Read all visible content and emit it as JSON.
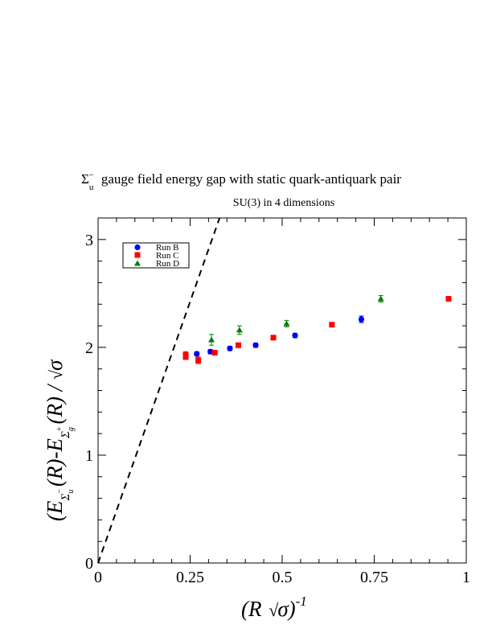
{
  "chart_data": {
    "type": "scatter",
    "title": "gauge field energy gap with static quark-antiquark pair",
    "title_symbol": {
      "base": "Σ",
      "sub": "u",
      "sup": "−"
    },
    "subtitle": "SU(3) in 4 dimensions",
    "xlabel": {
      "open": "(R ",
      "sigma": "σ",
      "close": ")",
      "exp": "-1"
    },
    "ylabel": {
      "open": "(E",
      "sub1_base": "Σ",
      "sub1_sub": "u",
      "sub1_sup": "−",
      "mid": "(R)-E",
      "sub2_base": "Σ",
      "sub2_sub": "g",
      "sub2_sup": "+",
      "tail": "(R) / ",
      "sigma": "σ"
    },
    "xlim": [
      0,
      1
    ],
    "ylim": [
      0,
      3.2
    ],
    "x_ticks": [
      {
        "value": 0,
        "label": "0"
      },
      {
        "value": 0.25,
        "label": "0.25"
      },
      {
        "value": 0.5,
        "label": "0.5"
      },
      {
        "value": 0.75,
        "label": "0.75"
      },
      {
        "value": 1,
        "label": "1"
      }
    ],
    "y_ticks": [
      {
        "value": 0,
        "label": "0"
      },
      {
        "value": 1,
        "label": "1"
      },
      {
        "value": 2,
        "label": "2"
      },
      {
        "value": 3,
        "label": "3"
      }
    ],
    "legend_position": "top-left",
    "series": [
      {
        "name": "Run B",
        "color": "#0000ff",
        "marker": "circle",
        "points": [
          {
            "x": 0.268,
            "y": 1.94,
            "err": 0.02
          },
          {
            "x": 0.305,
            "y": 1.96,
            "err": 0.02
          },
          {
            "x": 0.358,
            "y": 1.99,
            "err": 0.02
          },
          {
            "x": 0.428,
            "y": 2.02,
            "err": 0.02
          },
          {
            "x": 0.535,
            "y": 2.11,
            "err": 0.02
          },
          {
            "x": 0.715,
            "y": 2.26,
            "err": 0.03
          }
        ]
      },
      {
        "name": "Run C",
        "color": "#ff0000",
        "marker": "square",
        "points": [
          {
            "x": 0.238,
            "y": 1.93,
            "err": 0.03
          },
          {
            "x": 0.238,
            "y": 1.91,
            "err": 0.02
          },
          {
            "x": 0.272,
            "y": 1.88,
            "err": 0.03
          },
          {
            "x": 0.317,
            "y": 1.95,
            "err": 0.02
          },
          {
            "x": 0.381,
            "y": 2.02,
            "err": 0.02
          },
          {
            "x": 0.476,
            "y": 2.09,
            "err": 0.02
          },
          {
            "x": 0.635,
            "y": 2.21,
            "err": 0.02
          },
          {
            "x": 0.952,
            "y": 2.45,
            "err": 0.02
          }
        ]
      },
      {
        "name": "Run D",
        "color": "#008000",
        "marker": "triangle",
        "points": [
          {
            "x": 0.308,
            "y": 2.07,
            "err": 0.05
          },
          {
            "x": 0.384,
            "y": 2.16,
            "err": 0.04
          },
          {
            "x": 0.512,
            "y": 2.22,
            "err": 0.03
          },
          {
            "x": 0.768,
            "y": 2.45,
            "err": 0.03
          }
        ]
      }
    ],
    "reference_line": {
      "style": "dashed",
      "x": [
        0,
        0.33
      ],
      "y": [
        0,
        3.2
      ]
    }
  }
}
